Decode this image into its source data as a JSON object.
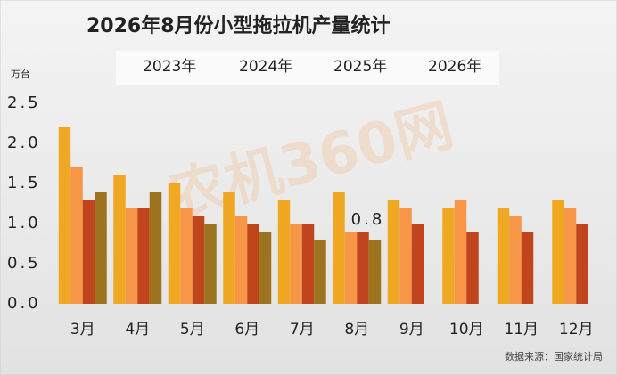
{
  "chart_data": {
    "type": "bar",
    "title": "2026年8月份小型拖拉机产量统计",
    "y_axis_label": "万台",
    "source": "数据来源：国家统计局",
    "watermark": "农机360网",
    "categories": [
      "3月",
      "4月",
      "5月",
      "6月",
      "7月",
      "8月",
      "9月",
      "10月",
      "11月",
      "12月"
    ],
    "series": [
      {
        "name": "2023年",
        "color": "#f0a823",
        "values": [
          2.2,
          1.6,
          1.5,
          1.4,
          1.3,
          1.4,
          1.3,
          1.2,
          1.2,
          1.3
        ]
      },
      {
        "name": "2024年",
        "color": "#f79646",
        "values": [
          1.7,
          1.2,
          1.2,
          1.1,
          1.0,
          0.9,
          1.2,
          1.3,
          1.1,
          1.2
        ]
      },
      {
        "name": "2025年",
        "color": "#c0441c",
        "values": [
          1.3,
          1.2,
          1.1,
          1.0,
          1.0,
          0.9,
          1.0,
          0.9,
          0.9,
          1.0
        ]
      },
      {
        "name": "2026年",
        "color": "#9c7420",
        "values": [
          1.4,
          1.4,
          1.0,
          0.9,
          0.8,
          0.8,
          null,
          null,
          null,
          null
        ],
        "value_labels": [
          null,
          null,
          null,
          null,
          null,
          "0.8",
          null,
          null,
          null,
          null
        ]
      }
    ],
    "ylim": [
      0,
      2.5
    ],
    "yticks": [
      {
        "value": 0,
        "label": "0.0"
      },
      0.5,
      {
        "value": 1,
        "label": "1.0"
      },
      1.5,
      {
        "value": 2,
        "label": "2.0"
      },
      2.5
    ],
    "grid": false,
    "legend": "top"
  }
}
